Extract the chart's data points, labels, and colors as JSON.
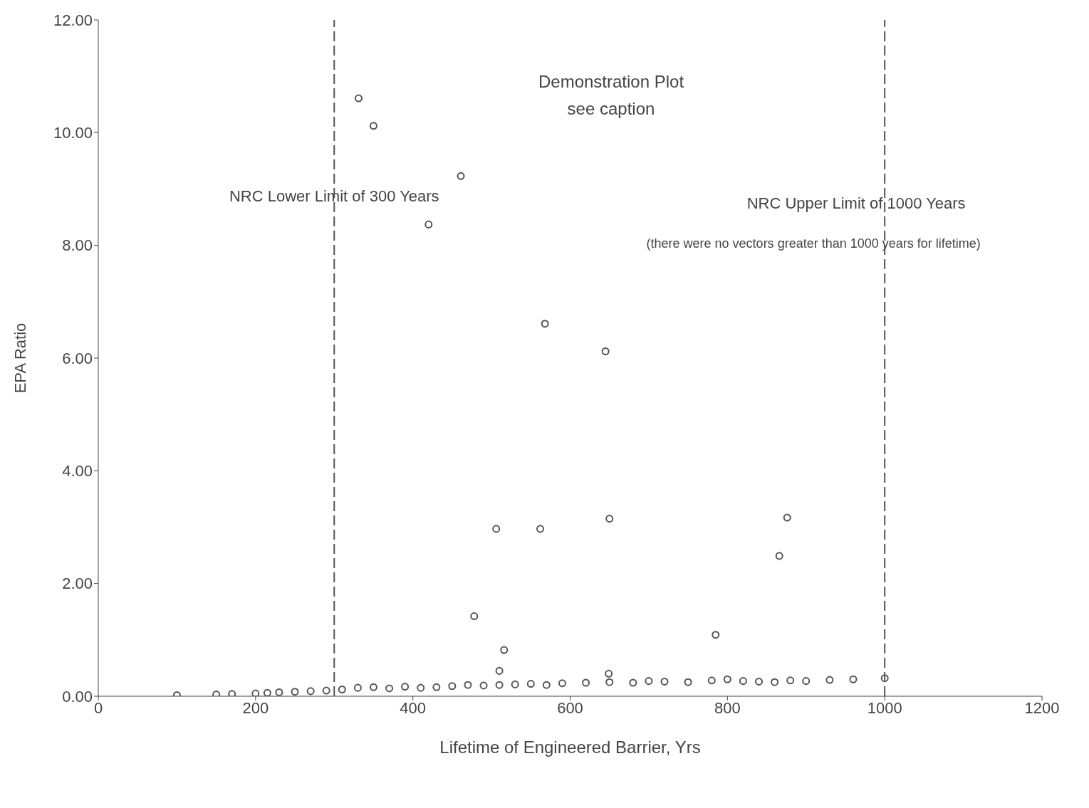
{
  "chart_data": {
    "type": "scatter",
    "title": "Demonstration Plot",
    "subtitle": "see caption",
    "xlabel": "Lifetime of Engineered Barrier, Yrs",
    "ylabel": "EPA Ratio",
    "xlim": [
      0,
      1200
    ],
    "xticks": [
      0,
      200,
      400,
      600,
      800,
      1000,
      1200
    ],
    "ylim": [
      0,
      12
    ],
    "yticks": [
      {
        "value": 0,
        "label": "0.00"
      },
      {
        "value": 2,
        "label": "2.00"
      },
      {
        "value": 4,
        "label": "4.00"
      },
      {
        "value": 6,
        "label": "6.00"
      },
      {
        "value": 8,
        "label": "8.00"
      },
      {
        "value": 10,
        "label": "10.00"
      },
      {
        "value": 12,
        "label": "12.00"
      }
    ],
    "grid": false,
    "legend": false,
    "marker": "circle",
    "series": [
      {
        "color": "#555555",
        "x": [
          100,
          150,
          170,
          200,
          215,
          230,
          250,
          270,
          290,
          310,
          330,
          350,
          370,
          390,
          410,
          430,
          450,
          470,
          490,
          510,
          530,
          550,
          570,
          590,
          620,
          650,
          680,
          700,
          720,
          750,
          780,
          800,
          820,
          840,
          860,
          880,
          900,
          930,
          960,
          1000,
          331,
          350,
          461,
          420,
          568,
          645,
          506,
          562,
          650,
          876,
          866,
          478,
          516,
          785,
          510,
          649
        ],
        "values": [
          0.02,
          0.03,
          0.04,
          0.05,
          0.06,
          0.07,
          0.08,
          0.09,
          0.1,
          0.12,
          0.15,
          0.16,
          0.14,
          0.17,
          0.15,
          0.16,
          0.18,
          0.2,
          0.19,
          0.2,
          0.21,
          0.22,
          0.2,
          0.23,
          0.24,
          0.25,
          0.24,
          0.27,
          0.26,
          0.25,
          0.28,
          0.3,
          0.27,
          0.26,
          0.25,
          0.28,
          0.27,
          0.29,
          0.3,
          0.32,
          10.61,
          10.12,
          9.23,
          8.37,
          6.61,
          6.12,
          2.97,
          2.97,
          3.15,
          3.17,
          2.49,
          1.42,
          0.82,
          1.09,
          0.45,
          0.4
        ]
      }
    ],
    "ref_lines": [
      {
        "axis": "x",
        "value": 300,
        "label": "NRC Lower Limit of 300 Years",
        "line_style": "dashed"
      },
      {
        "axis": "x",
        "value": 1000,
        "label": "NRC Upper Limit of 1000 Years",
        "line_style": "dashed"
      }
    ],
    "annotations": [
      "(there were no vectors greater than 1000 years for lifetime)"
    ]
  }
}
